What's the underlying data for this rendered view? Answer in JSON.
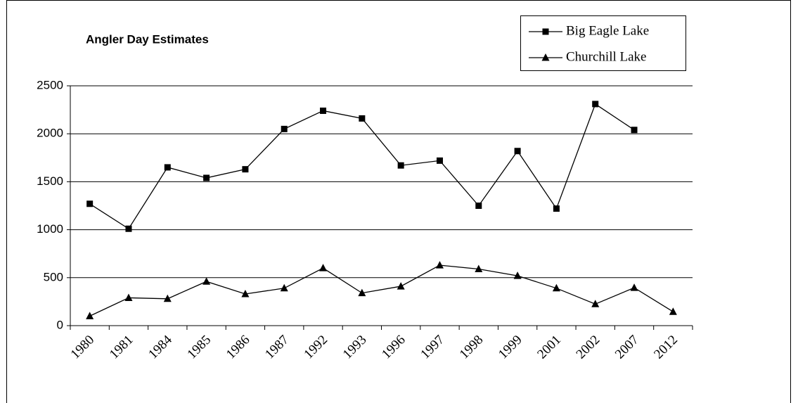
{
  "chart_data": {
    "type": "line",
    "title": "Angler Day Estimates",
    "categories": [
      "1980",
      "1981",
      "1984",
      "1985",
      "1986",
      "1987",
      "1992",
      "1993",
      "1996",
      "1997",
      "1998",
      "1999",
      "2001",
      "2002",
      "2007",
      "2012"
    ],
    "series": [
      {
        "name": "Big Eagle Lake",
        "color": "#000000",
        "marker": "square",
        "values": [
          1270,
          1010,
          1650,
          1540,
          1630,
          2050,
          2240,
          2160,
          1670,
          1720,
          1250,
          1820,
          1220,
          2310,
          2040,
          null
        ]
      },
      {
        "name": "Churchill Lake",
        "color": "#000000",
        "marker": "triangle",
        "values": [
          100,
          290,
          280,
          460,
          330,
          390,
          600,
          340,
          410,
          630,
          590,
          520,
          390,
          225,
          395,
          145
        ]
      }
    ],
    "ylim": [
      0,
      2500
    ],
    "yticks": [
      0,
      500,
      1000,
      1500,
      2000,
      2500
    ],
    "grid": true,
    "legend": "top-right"
  }
}
